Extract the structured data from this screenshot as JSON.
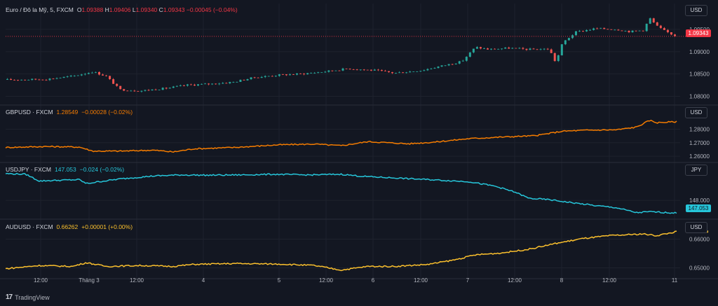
{
  "colors": {
    "background": "#131722",
    "grid": "#1e222d",
    "separator": "#2a2e39",
    "text": "#d1d4dc",
    "axis_text": "#b2b5be",
    "up": "#26a69a",
    "down": "#ef5350",
    "gbpusd": "#f57c00",
    "usdjpy": "#26c6da",
    "audusd": "#fbc02d",
    "price_tag_red": "#f23645"
  },
  "panes": [
    {
      "legend": {
        "symbol": "Euro / Đô la Mỹ, 5, FXCM",
        "o_label": "O",
        "o": "1.09388",
        "h_label": "H",
        "h": "1.09406",
        "l_label": "L",
        "l": "1.09340",
        "c_label": "C",
        "c": "1.09343",
        "change": "−0.00045 (−0.04%)"
      },
      "currency": "USD",
      "ticks": [
        "1.09500",
        "1.09000",
        "1.08500",
        "1.08000"
      ],
      "last_price": "1.09343"
    },
    {
      "legend": {
        "symbol": "GBPUSD · FXCM",
        "last": "1.28549",
        "change": "−0.00028 (−0.02%)"
      },
      "currency": "USD",
      "ticks": [
        "1.28000",
        "1.27000",
        "1.26000"
      ]
    },
    {
      "legend": {
        "symbol": "USDJPY · FXCM",
        "last": "147.053",
        "change": "−0.024 (−0.02%)"
      },
      "currency": "JPY",
      "ticks": [
        "148.000"
      ],
      "last_price": "147.053"
    },
    {
      "legend": {
        "symbol": "AUDUSD · FXCM",
        "last": "0.66262",
        "change": "+0.00001 (+0.00%)"
      },
      "currency": "USD",
      "ticks": [
        "0.66000",
        "0.65000"
      ]
    }
  ],
  "time_axis": [
    "12:00",
    "Tháng 3",
    "12:00",
    "4",
    "5",
    "12:00",
    "6",
    "12:00",
    "7",
    "12:00",
    "8",
    "12:00",
    "11"
  ],
  "footer": {
    "logo": "17",
    "brand": "TradingView"
  },
  "chart_data": [
    {
      "type": "candlestick",
      "title": "Euro / Đô la Mỹ, 5, FXCM",
      "ylim": [
        1.0785,
        1.0975
      ],
      "ticks": [
        1.095,
        1.09,
        1.085,
        1.08
      ],
      "last": 1.09343,
      "x_labels": [
        "12:00",
        "Tháng 3",
        "12:00",
        "4",
        "5",
        "12:00",
        "6",
        "12:00",
        "7",
        "12:00",
        "8",
        "12:00",
        "11"
      ],
      "close_path": [
        [
          0,
          1.0837
        ],
        [
          6,
          1.0838
        ],
        [
          10,
          1.0845
        ],
        [
          13,
          1.0855
        ],
        [
          15,
          1.0845
        ],
        [
          17,
          1.0815
        ],
        [
          20,
          1.0812
        ],
        [
          24,
          1.0818
        ],
        [
          27,
          1.0825
        ],
        [
          31,
          1.0828
        ],
        [
          34,
          1.0832
        ],
        [
          37,
          1.0842
        ],
        [
          41,
          1.0848
        ],
        [
          44,
          1.085
        ],
        [
          48,
          1.0856
        ],
        [
          51,
          1.0862
        ],
        [
          55,
          1.0858
        ],
        [
          58,
          1.0852
        ],
        [
          62,
          1.0858
        ],
        [
          65,
          1.0868
        ],
        [
          68,
          1.0878
        ],
        [
          70,
          1.091
        ],
        [
          72,
          1.0905
        ],
        [
          75,
          1.0908
        ],
        [
          78,
          1.0905
        ],
        [
          81,
          1.0906
        ],
        [
          82,
          1.0875
        ],
        [
          83,
          1.092
        ],
        [
          85,
          1.0944
        ],
        [
          88,
          1.0952
        ],
        [
          91,
          1.095
        ],
        [
          93,
          1.0945
        ],
        [
          95,
          1.0948
        ],
        [
          96,
          1.0975
        ],
        [
          97,
          1.0958
        ],
        [
          98,
          1.0948
        ],
        [
          100,
          1.0934
        ]
      ]
    },
    {
      "type": "line",
      "title": "GBPUSD · FXCM",
      "ylim": [
        1.2575,
        1.2885
      ],
      "ticks": [
        1.28,
        1.27,
        1.26
      ],
      "last": 1.28549,
      "series": [
        {
          "name": "GBPUSD · FXCM",
          "points": [
            [
              0,
              1.2665
            ],
            [
              6,
              1.2672
            ],
            [
              11,
              1.2668
            ],
            [
              13,
              1.2638
            ],
            [
              17,
              1.2638
            ],
            [
              22,
              1.2645
            ],
            [
              25,
              1.2632
            ],
            [
              28,
              1.2655
            ],
            [
              34,
              1.2665
            ],
            [
              41,
              1.2685
            ],
            [
              46,
              1.269
            ],
            [
              50,
              1.2678
            ],
            [
              54,
              1.2708
            ],
            [
              60,
              1.2692
            ],
            [
              64,
              1.2705
            ],
            [
              69,
              1.273
            ],
            [
              74,
              1.2742
            ],
            [
              79,
              1.2752
            ],
            [
              83,
              1.2785
            ],
            [
              87,
              1.2793
            ],
            [
              91,
              1.2795
            ],
            [
              94,
              1.2815
            ],
            [
              96,
              1.2865
            ],
            [
              97,
              1.2848
            ],
            [
              100,
              1.2855
            ]
          ]
        }
      ]
    },
    {
      "type": "line",
      "title": "USDJPY · FXCM",
      "ylim": [
        146.75,
        150.1
      ],
      "ticks": [
        148.0
      ],
      "last": 147.053,
      "series": [
        {
          "name": "USDJPY · FXCM",
          "points": [
            [
              0,
              150.0
            ],
            [
              3,
              149.95
            ],
            [
              5,
              149.45
            ],
            [
              8,
              149.5
            ],
            [
              11,
              149.55
            ],
            [
              12,
              149.25
            ],
            [
              14,
              149.4
            ],
            [
              17,
              149.6
            ],
            [
              22,
              149.82
            ],
            [
              26,
              149.9
            ],
            [
              30,
              149.88
            ],
            [
              35,
              149.9
            ],
            [
              40,
              149.95
            ],
            [
              45,
              149.9
            ],
            [
              50,
              149.95
            ],
            [
              53,
              149.8
            ],
            [
              57,
              149.7
            ],
            [
              61,
              149.6
            ],
            [
              65,
              149.5
            ],
            [
              69,
              149.4
            ],
            [
              73,
              149.05
            ],
            [
              76,
              148.6
            ],
            [
              78,
              148.15
            ],
            [
              81,
              148.05
            ],
            [
              84,
              147.85
            ],
            [
              88,
              147.6
            ],
            [
              91,
              147.45
            ],
            [
              94,
              147.08
            ],
            [
              96,
              147.15
            ],
            [
              100,
              147.05
            ]
          ]
        }
      ]
    },
    {
      "type": "line",
      "title": "AUDUSD · FXCM",
      "ylim": [
        0.6467,
        0.6628
      ],
      "ticks": [
        0.66,
        0.65
      ],
      "last": 0.66262,
      "series": [
        {
          "name": "AUDUSD · FXCM",
          "points": [
            [
              0,
              0.6497
            ],
            [
              5,
              0.6508
            ],
            [
              10,
              0.6505
            ],
            [
              12,
              0.6518
            ],
            [
              15,
              0.6505
            ],
            [
              20,
              0.6508
            ],
            [
              25,
              0.6505
            ],
            [
              28,
              0.6512
            ],
            [
              34,
              0.6515
            ],
            [
              41,
              0.6513
            ],
            [
              46,
              0.6508
            ],
            [
              50,
              0.6492
            ],
            [
              54,
              0.6505
            ],
            [
              58,
              0.6505
            ],
            [
              63,
              0.6512
            ],
            [
              67,
              0.6528
            ],
            [
              70,
              0.6545
            ],
            [
              74,
              0.6552
            ],
            [
              78,
              0.6565
            ],
            [
              82,
              0.6585
            ],
            [
              86,
              0.6602
            ],
            [
              90,
              0.6612
            ],
            [
              95,
              0.6618
            ],
            [
              97,
              0.6612
            ],
            [
              100,
              0.6626
            ]
          ]
        }
      ]
    }
  ]
}
